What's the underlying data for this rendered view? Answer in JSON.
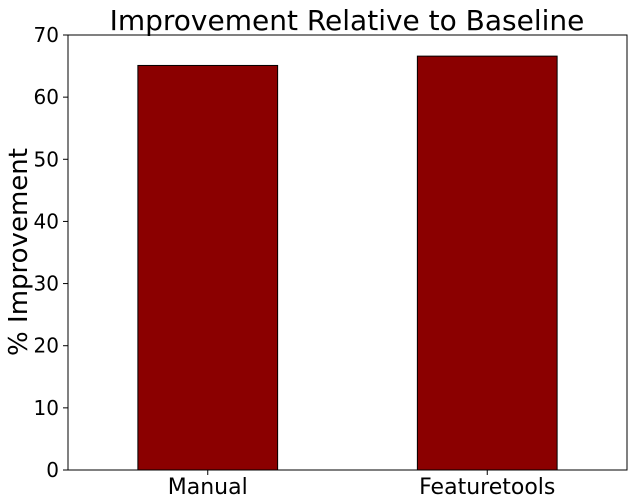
{
  "chart_data": {
    "type": "bar",
    "title": "Improvement Relative to Baseline",
    "xlabel": "",
    "ylabel": "% Improvement",
    "categories": [
      "Manual",
      "Featuretools"
    ],
    "values": [
      65.1,
      66.6
    ],
    "ylim": [
      0,
      70
    ],
    "yticks": [
      "0",
      "10",
      "20",
      "30",
      "40",
      "50",
      "60",
      "70"
    ],
    "grid": false,
    "legend": "none",
    "bar_color": "#8b0000",
    "bar_edge_color": "#000000"
  }
}
